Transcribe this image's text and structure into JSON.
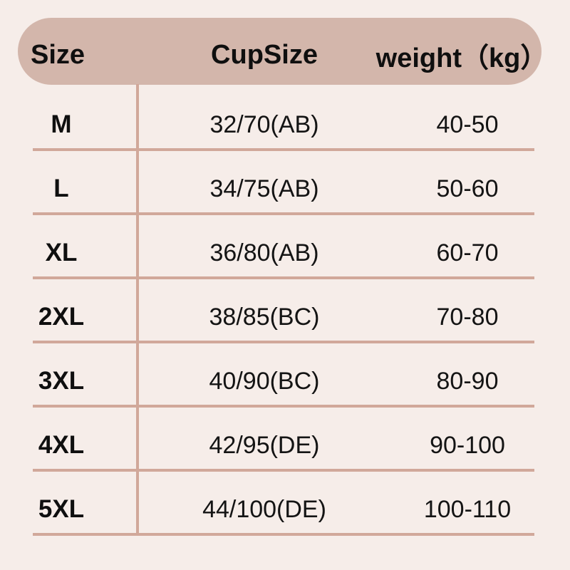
{
  "colors": {
    "background": "#f6ede9",
    "header_pill": "#d3b6ab",
    "divider_line": "#d1a89a",
    "text": "#141414"
  },
  "chart_data": {
    "type": "table",
    "columns": [
      "Size",
      "CupSize",
      "weight（kg）"
    ],
    "rows": [
      [
        "M",
        "32/70(AB)",
        "40-50"
      ],
      [
        "L",
        "34/75(AB)",
        "50-60"
      ],
      [
        "XL",
        "36/80(AB)",
        "60-70"
      ],
      [
        "2XL",
        "38/85(BC)",
        "70-80"
      ],
      [
        "3XL",
        "40/90(BC)",
        "80-90"
      ],
      [
        "4XL",
        "42/95(DE)",
        "90-100"
      ],
      [
        "5XL",
        "44/100(DE)",
        "100-110"
      ]
    ]
  }
}
